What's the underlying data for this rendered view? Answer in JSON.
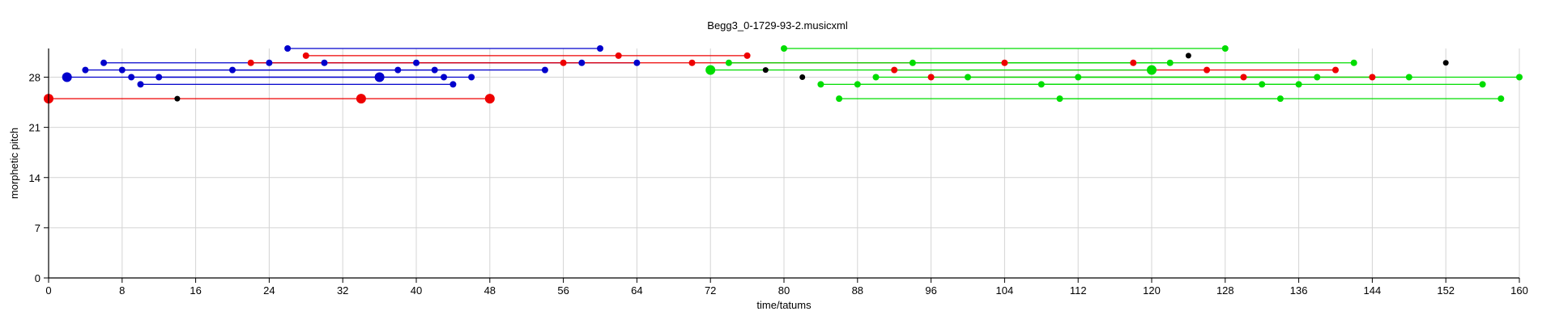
{
  "chart_data": {
    "type": "scatter",
    "title": "Begg3_0-1729-93-2.musicxml",
    "xlabel": "time/tatums",
    "ylabel": "morphetic pitch",
    "xlim": [
      0,
      160
    ],
    "ylim": [
      0,
      32
    ],
    "xticks": [
      0,
      8,
      16,
      24,
      32,
      40,
      48,
      56,
      64,
      72,
      80,
      88,
      96,
      104,
      112,
      120,
      128,
      136,
      144,
      152,
      160
    ],
    "yticks": [
      0,
      7,
      14,
      21,
      28
    ],
    "grid": true,
    "colors": {
      "blue": "#0000cc",
      "red": "#ee0000",
      "green": "#00dd00",
      "black": "#000000"
    },
    "series": [
      {
        "color": "blue",
        "points": [
          {
            "x": 2,
            "y": 28,
            "size": "large"
          },
          {
            "x": 4,
            "y": 29
          },
          {
            "x": 6,
            "y": 30
          },
          {
            "x": 8,
            "y": 29
          },
          {
            "x": 9,
            "y": 28
          },
          {
            "x": 10,
            "y": 27
          },
          {
            "x": 12,
            "y": 28
          },
          {
            "x": 20,
            "y": 29
          },
          {
            "x": 24,
            "y": 30
          },
          {
            "x": 26,
            "y": 32
          },
          {
            "x": 30,
            "y": 30
          },
          {
            "x": 36,
            "y": 28,
            "size": "large"
          },
          {
            "x": 38,
            "y": 29
          },
          {
            "x": 40,
            "y": 30
          },
          {
            "x": 42,
            "y": 29
          },
          {
            "x": 43,
            "y": 28
          },
          {
            "x": 44,
            "y": 27
          },
          {
            "x": 46,
            "y": 28
          },
          {
            "x": 54,
            "y": 29
          },
          {
            "x": 58,
            "y": 30
          },
          {
            "x": 60,
            "y": 32
          },
          {
            "x": 64,
            "y": 30
          }
        ],
        "segments": [
          {
            "x1": 26,
            "x2": 60,
            "y": 32
          },
          {
            "x1": 6,
            "x2": 30,
            "y": 30
          },
          {
            "x1": 24,
            "x2": 58,
            "y": 30
          },
          {
            "x1": 30,
            "x2": 64,
            "y": 30
          },
          {
            "x1": 4,
            "x2": 38,
            "y": 29
          },
          {
            "x1": 8,
            "x2": 42,
            "y": 29
          },
          {
            "x1": 20,
            "x2": 54,
            "y": 29
          },
          {
            "x1": 2,
            "x2": 36,
            "y": 28
          },
          {
            "x1": 9,
            "x2": 43,
            "y": 28
          },
          {
            "x1": 12,
            "x2": 46,
            "y": 28
          },
          {
            "x1": 10,
            "x2": 44,
            "y": 27
          }
        ]
      },
      {
        "color": "red",
        "points": [
          {
            "x": 0,
            "y": 25,
            "size": "large"
          },
          {
            "x": 22,
            "y": 30
          },
          {
            "x": 28,
            "y": 31
          },
          {
            "x": 34,
            "y": 25,
            "size": "large"
          },
          {
            "x": 48,
            "y": 25,
            "size": "large"
          },
          {
            "x": 56,
            "y": 30
          },
          {
            "x": 62,
            "y": 31
          },
          {
            "x": 70,
            "y": 30
          },
          {
            "x": 76,
            "y": 31
          },
          {
            "x": 92,
            "y": 29
          },
          {
            "x": 96,
            "y": 28
          },
          {
            "x": 104,
            "y": 30
          },
          {
            "x": 118,
            "y": 30
          },
          {
            "x": 126,
            "y": 29
          },
          {
            "x": 130,
            "y": 28
          },
          {
            "x": 140,
            "y": 29
          },
          {
            "x": 144,
            "y": 28
          }
        ],
        "segments": [
          {
            "x1": 0,
            "x2": 48,
            "y": 25
          },
          {
            "x1": 28,
            "x2": 62,
            "y": 31
          },
          {
            "x1": 62,
            "x2": 76,
            "y": 31
          },
          {
            "x1": 22,
            "x2": 56,
            "y": 30
          },
          {
            "x1": 56,
            "x2": 70,
            "y": 30
          },
          {
            "x1": 70,
            "x2": 104,
            "y": 30
          },
          {
            "x1": 104,
            "x2": 118,
            "y": 30
          },
          {
            "x1": 92,
            "x2": 126,
            "y": 29
          },
          {
            "x1": 126,
            "x2": 140,
            "y": 29
          },
          {
            "x1": 96,
            "x2": 130,
            "y": 28
          },
          {
            "x1": 130,
            "x2": 144,
            "y": 28
          }
        ]
      },
      {
        "color": "green",
        "points": [
          {
            "x": 72,
            "y": 29,
            "size": "large"
          },
          {
            "x": 74,
            "y": 30
          },
          {
            "x": 80,
            "y": 32
          },
          {
            "x": 84,
            "y": 27
          },
          {
            "x": 86,
            "y": 25
          },
          {
            "x": 88,
            "y": 27
          },
          {
            "x": 90,
            "y": 28
          },
          {
            "x": 94,
            "y": 30
          },
          {
            "x": 100,
            "y": 28
          },
          {
            "x": 108,
            "y": 27
          },
          {
            "x": 110,
            "y": 25
          },
          {
            "x": 112,
            "y": 28
          },
          {
            "x": 120,
            "y": 29,
            "size": "large"
          },
          {
            "x": 122,
            "y": 30
          },
          {
            "x": 128,
            "y": 32
          },
          {
            "x": 132,
            "y": 27
          },
          {
            "x": 134,
            "y": 25
          },
          {
            "x": 136,
            "y": 27
          },
          {
            "x": 138,
            "y": 28
          },
          {
            "x": 142,
            "y": 30
          },
          {
            "x": 148,
            "y": 28
          },
          {
            "x": 156,
            "y": 27
          },
          {
            "x": 158,
            "y": 25
          },
          {
            "x": 160,
            "y": 28
          }
        ],
        "segments": [
          {
            "x1": 80,
            "x2": 128,
            "y": 32
          },
          {
            "x1": 74,
            "x2": 122,
            "y": 30
          },
          {
            "x1": 94,
            "x2": 142,
            "y": 30
          },
          {
            "x1": 72,
            "x2": 120,
            "y": 29
          },
          {
            "x1": 90,
            "x2": 138,
            "y": 28
          },
          {
            "x1": 100,
            "x2": 148,
            "y": 28
          },
          {
            "x1": 112,
            "x2": 160,
            "y": 28
          },
          {
            "x1": 84,
            "x2": 132,
            "y": 27
          },
          {
            "x1": 88,
            "x2": 136,
            "y": 27
          },
          {
            "x1": 108,
            "x2": 156,
            "y": 27
          },
          {
            "x1": 86,
            "x2": 134,
            "y": 25
          },
          {
            "x1": 110,
            "x2": 158,
            "y": 25
          }
        ]
      },
      {
        "color": "black",
        "points": [
          {
            "x": 14,
            "y": 25
          },
          {
            "x": 78,
            "y": 29
          },
          {
            "x": 82,
            "y": 28
          },
          {
            "x": 124,
            "y": 31
          },
          {
            "x": 152,
            "y": 30
          }
        ],
        "segments": []
      }
    ]
  }
}
